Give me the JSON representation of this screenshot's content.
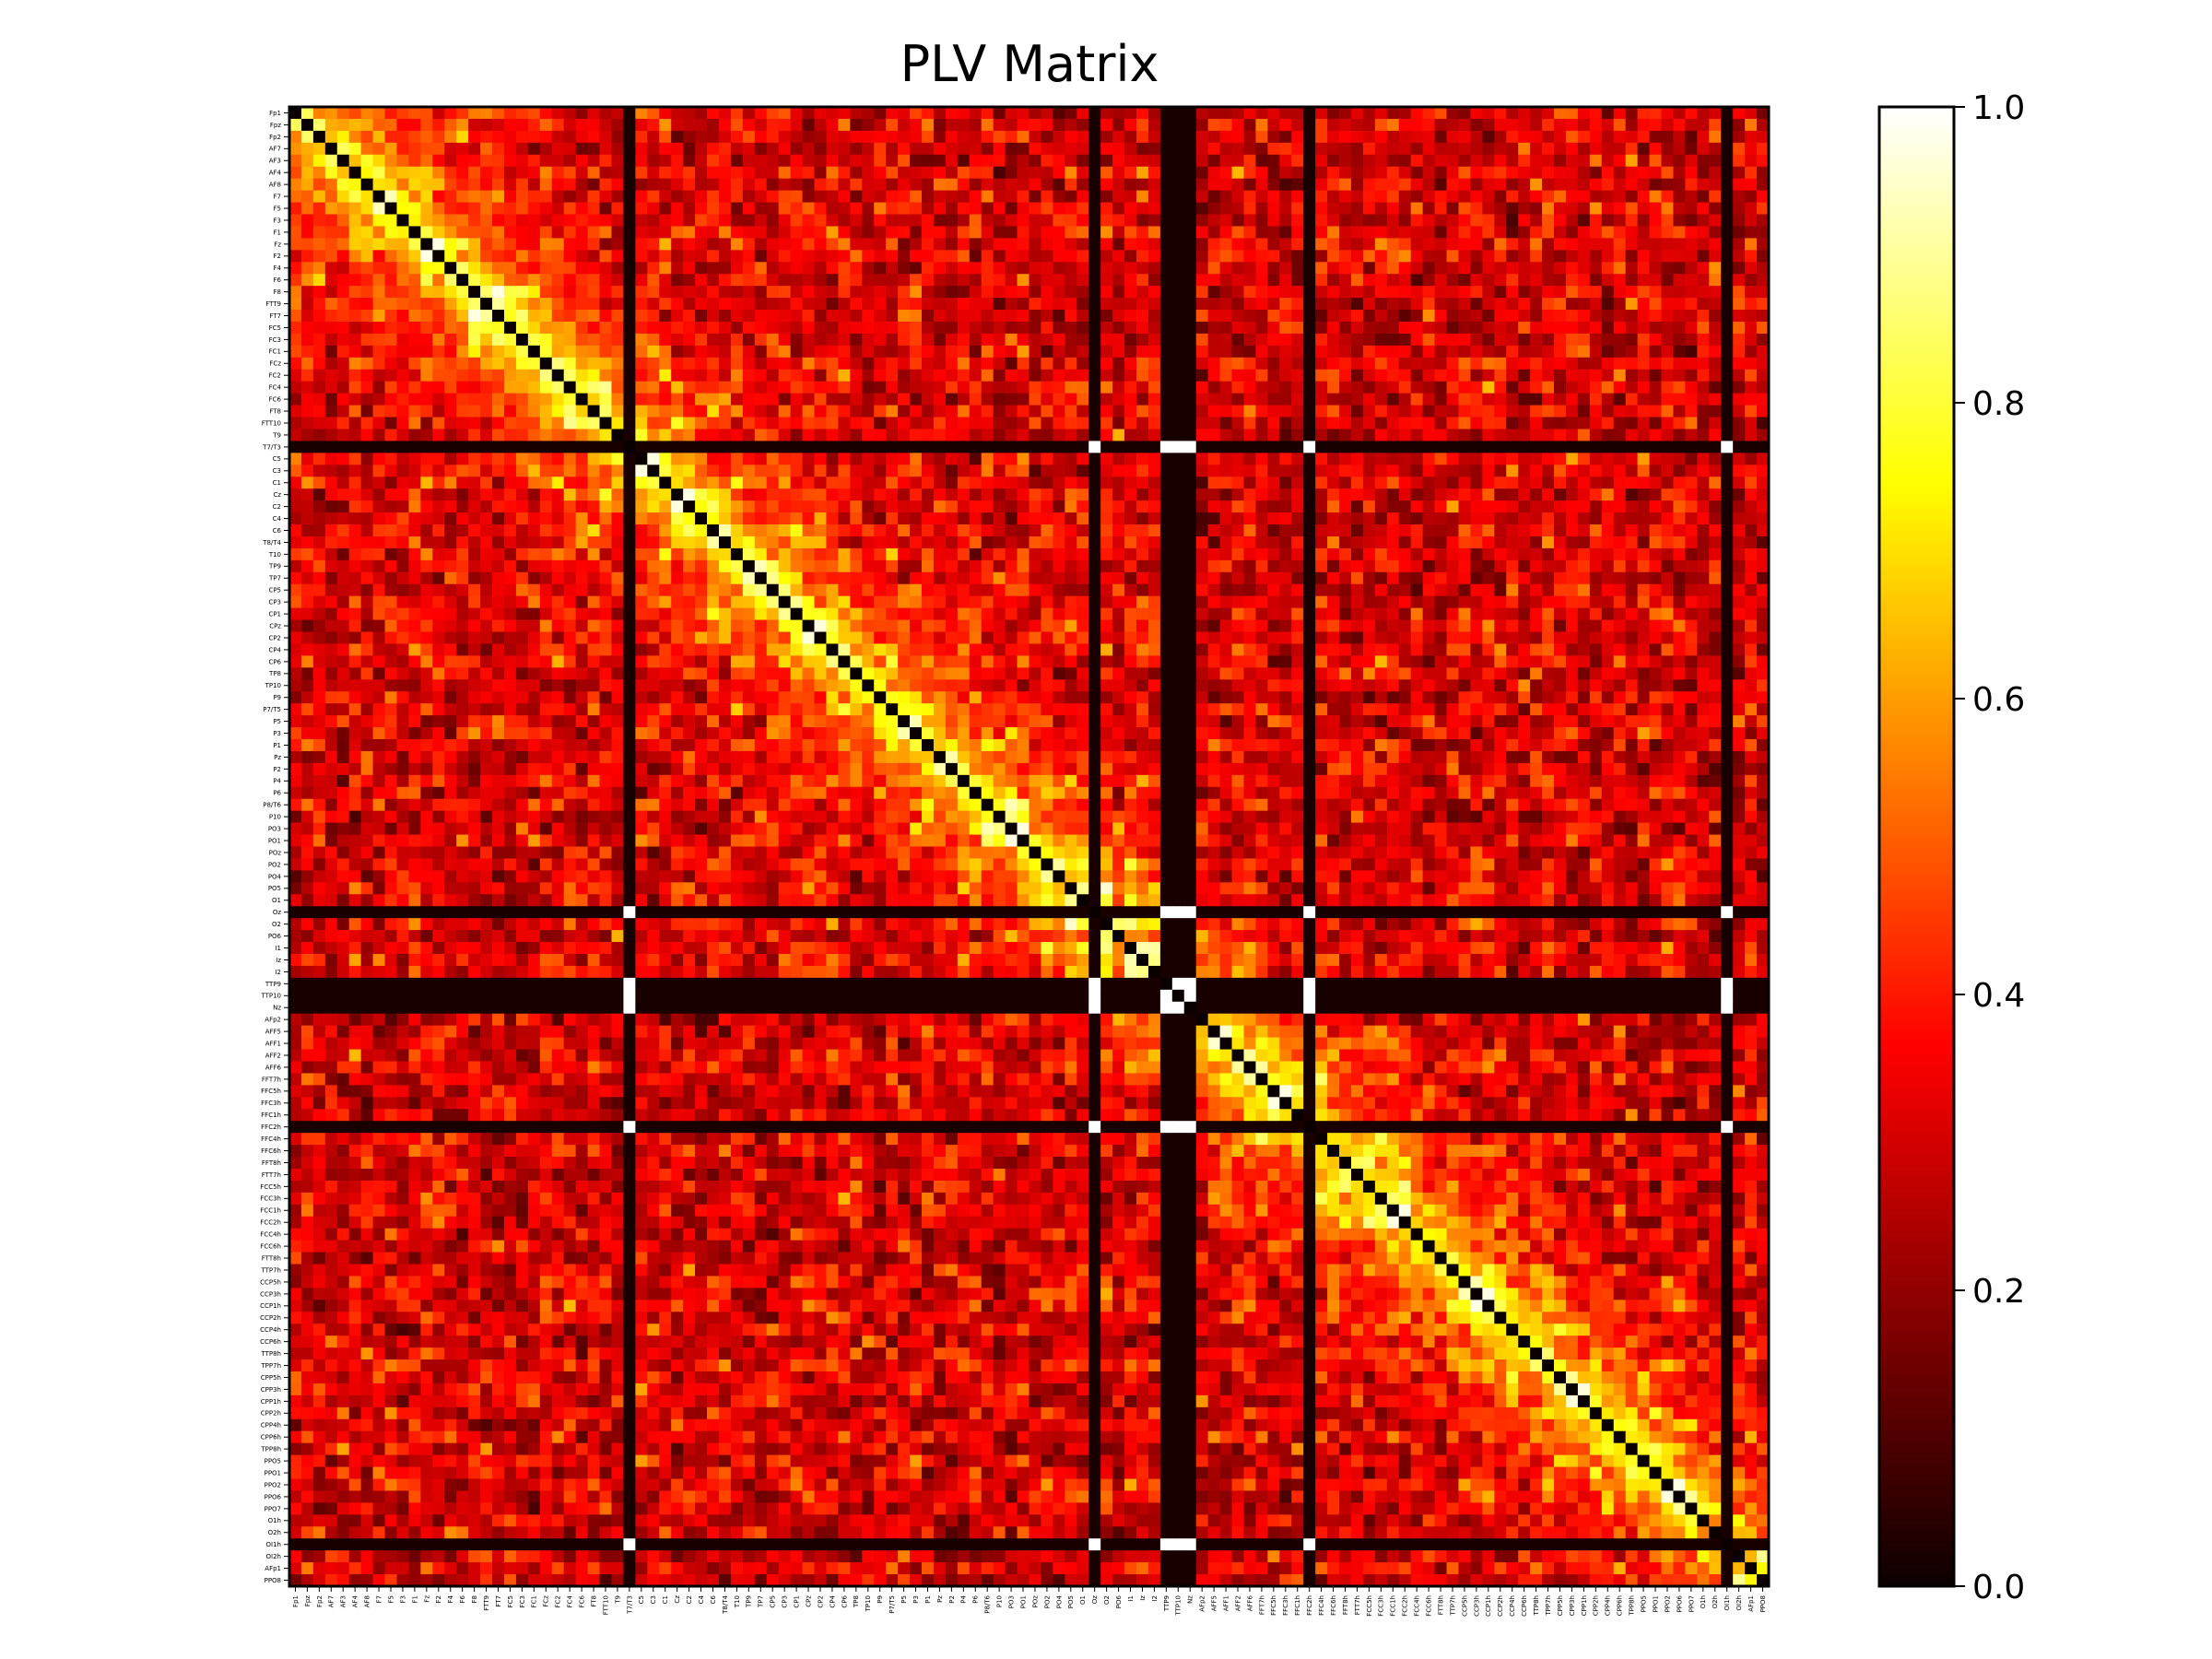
{
  "chart_data": {
    "type": "heatmap",
    "title": "PLV Matrix",
    "xlabel": "",
    "ylabel": "",
    "colormap": "hot",
    "value_range": [
      0,
      1
    ],
    "colorbar_ticks": [
      "0.0",
      "0.2",
      "0.4",
      "0.6",
      "0.8",
      "1.0"
    ],
    "channels": [
      "Fp1",
      "Fpz",
      "Fp2",
      "AF7",
      "AF3",
      "AF4",
      "AF8",
      "F7",
      "F5",
      "F3",
      "F1",
      "Fz",
      "F2",
      "F4",
      "F6",
      "F8",
      "FTT9",
      "FT7",
      "FC5",
      "FC3",
      "FC1",
      "FCz",
      "FC2",
      "FC4",
      "FC6",
      "FT8",
      "FTT10",
      "T9",
      "T7/T3",
      "C5",
      "C3",
      "C1",
      "Cz",
      "C2",
      "C4",
      "C6",
      "T8/T4",
      "T10",
      "TP9",
      "TP7",
      "CP5",
      "CP3",
      "CP1",
      "CPz",
      "CP2",
      "CP4",
      "CP6",
      "TP8",
      "TP10",
      "P9",
      "P7/T5",
      "P5",
      "P3",
      "P1",
      "Pz",
      "P2",
      "P4",
      "P6",
      "P8/T6",
      "P10",
      "PO3",
      "PO1",
      "POz",
      "PO2",
      "PO4",
      "PO5",
      "O1",
      "Oz",
      "O2",
      "PO6",
      "I1",
      "Iz",
      "I2",
      "TTP9",
      "TTP10",
      "Nz",
      "AFp2",
      "AFF5",
      "AFF1",
      "AFF2",
      "AFF6",
      "FFT7h",
      "FFC5h",
      "FFC3h",
      "FFC1h",
      "FFC2h",
      "FFC4h",
      "FFC6h",
      "FFT8h",
      "FTT7h",
      "FCC5h",
      "FCC3h",
      "FCC1h",
      "FCC2h",
      "FCC4h",
      "FCC6h",
      "FTT8h",
      "TTP7h",
      "CCP5h",
      "CCP3h",
      "CCP1h",
      "CCP2h",
      "CCP4h",
      "CCP6h",
      "TTP8h",
      "TPP7h",
      "CPP5h",
      "CPP3h",
      "CPP1h",
      "CPP2h",
      "CPP4h",
      "CPP6h",
      "TPP8h",
      "PPO5",
      "PPO1",
      "PPO2",
      "PPO6",
      "PPO7",
      "O1h",
      "O2h",
      "OI1h",
      "OI2h",
      "AFp1",
      "PPO8"
    ],
    "matrix_description": "Symmetric phase-locking value matrix; diagonal cells are 0 (drawn black); channels T7/T3, Oz, TTP9, TTP10, Nz, FFC2h and OI1h have near-zero PLV with all others except bright (1.0) cells at their mutual intersections."
  }
}
